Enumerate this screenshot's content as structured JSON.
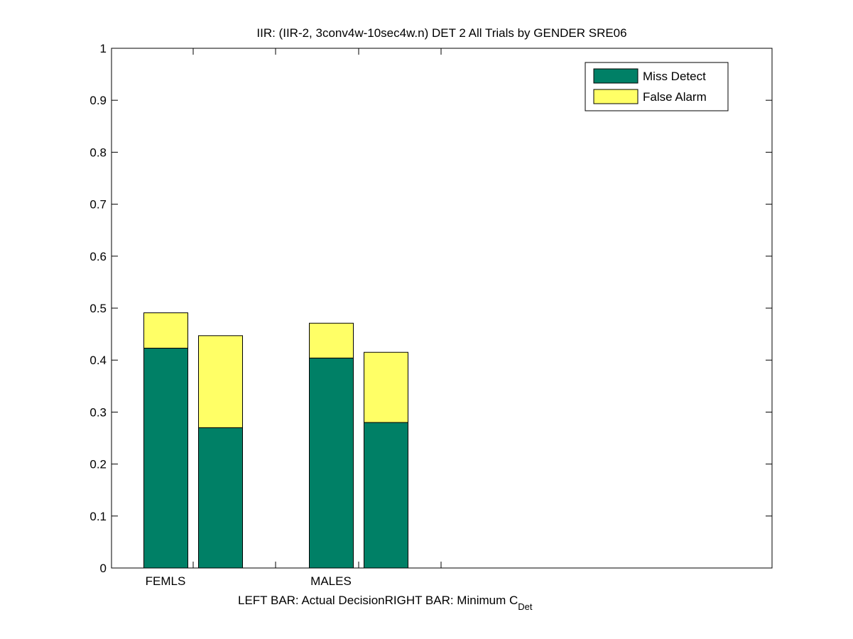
{
  "chart_data": {
    "type": "bar",
    "stacked": true,
    "title": "IIR: (IIR-2, 3conv4w-10sec4w.n) DET 2 All Trials by GENDER SRE06",
    "xlabel": {
      "left_part": "LEFT BAR: Actual Decision",
      "right_part": "RIGHT BAR: Minimum C",
      "right_subscript": "Det"
    },
    "ylabel": "",
    "ylim": [
      0,
      1
    ],
    "yticks": [
      "0",
      "0.1",
      "0.2",
      "0.3",
      "0.4",
      "0.5",
      "0.6",
      "0.7",
      "0.8",
      "0.9",
      "1"
    ],
    "categories": [
      "FEMLS",
      "MALES"
    ],
    "bar_roles": [
      "Actual Decision",
      "Minimum C_Det"
    ],
    "series": [
      {
        "name": "Miss Detect",
        "color": "#008066",
        "values": [
          [
            0.423,
            0.27
          ],
          [
            0.404,
            0.28
          ]
        ]
      },
      {
        "name": "False Alarm",
        "color": "#ffff66",
        "values": [
          [
            0.068,
            0.177
          ],
          [
            0.067,
            0.135
          ]
        ]
      }
    ],
    "legend_position": "top-right",
    "grid": false
  }
}
